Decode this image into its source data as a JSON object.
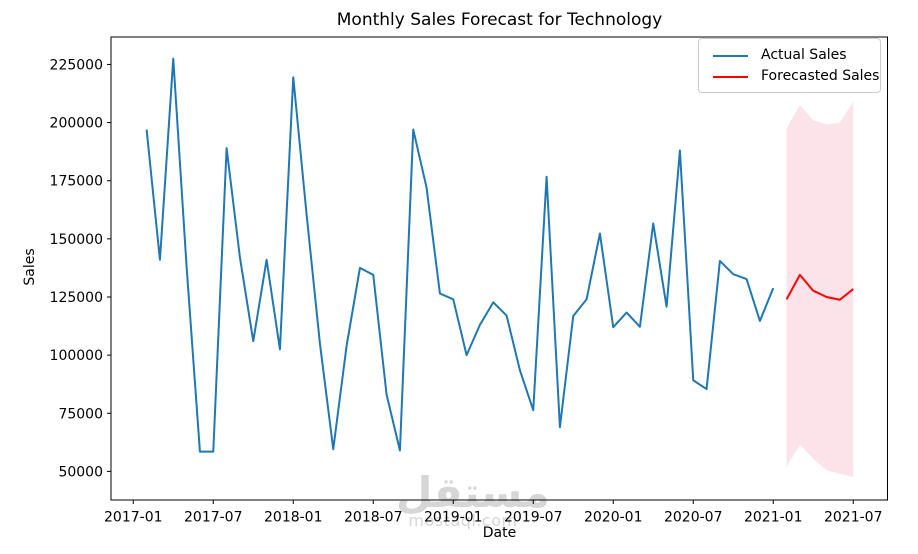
{
  "watermark": {
    "logo_text": "مستقل",
    "domain_text": "mostaql.com",
    "color": "#d6d6d6"
  },
  "chart_data": {
    "type": "line",
    "title": "Monthly Sales Forecast for Technology",
    "xlabel": "Date",
    "ylabel": "Sales",
    "axis_color": "#000000",
    "grid": false,
    "xlim_months": [
      -1.67,
      56.57
    ],
    "ylim": [
      37700,
      236800
    ],
    "x_ticks": [
      {
        "month": 0,
        "label": "2017-01"
      },
      {
        "month": 6,
        "label": "2017-07"
      },
      {
        "month": 12,
        "label": "2018-01"
      },
      {
        "month": 18,
        "label": "2018-07"
      },
      {
        "month": 24,
        "label": "2019-01"
      },
      {
        "month": 30,
        "label": "2019-07"
      },
      {
        "month": 36,
        "label": "2020-01"
      },
      {
        "month": 42,
        "label": "2020-07"
      },
      {
        "month": 48,
        "label": "2021-01"
      },
      {
        "month": 54,
        "label": "2021-07"
      }
    ],
    "y_ticks": [
      {
        "value": 50000,
        "label": "50000"
      },
      {
        "value": 75000,
        "label": "75000"
      },
      {
        "value": 100000,
        "label": "100000"
      },
      {
        "value": 125000,
        "label": "125000"
      },
      {
        "value": 150000,
        "label": "150000"
      },
      {
        "value": 175000,
        "label": "175000"
      },
      {
        "value": 200000,
        "label": "200000"
      },
      {
        "value": 225000,
        "label": "225000"
      }
    ],
    "legend": {
      "position": "top-right",
      "items": [
        {
          "label": "Actual Sales",
          "color": "#1f77b4"
        },
        {
          "label": "Forecasted Sales",
          "color": "#ff0000"
        }
      ]
    },
    "series": [
      {
        "name": "Actual Sales",
        "color": "#1f77b4",
        "dates": [
          "2017-02",
          "2017-03",
          "2017-04",
          "2017-05",
          "2017-06",
          "2017-07",
          "2017-08",
          "2017-09",
          "2017-10",
          "2017-11",
          "2017-12",
          "2018-01",
          "2018-02",
          "2018-03",
          "2018-04",
          "2018-05",
          "2018-06",
          "2018-07",
          "2018-08",
          "2018-09",
          "2018-10",
          "2018-11",
          "2018-12",
          "2019-01",
          "2019-02",
          "2019-03",
          "2019-04",
          "2019-05",
          "2019-06",
          "2019-07",
          "2019-08",
          "2019-09",
          "2019-10",
          "2019-11",
          "2019-12",
          "2020-01",
          "2020-02",
          "2020-03",
          "2020-04",
          "2020-05",
          "2020-06",
          "2020-07",
          "2020-08",
          "2020-09",
          "2020-10",
          "2020-11",
          "2020-12",
          "2021-01"
        ],
        "values": [
          197000,
          141000,
          227500,
          138000,
          58500,
          58500,
          189000,
          142000,
          106000,
          141000,
          102500,
          219500,
          160500,
          105000,
          59500,
          104000,
          137500,
          134500,
          83000,
          59000,
          197000,
          172000,
          126500,
          124000,
          100000,
          113000,
          122700,
          117000,
          93500,
          76300,
          176700,
          69000,
          116800,
          124000,
          152300,
          112000,
          118300,
          112200,
          156600,
          120800,
          188000,
          89200,
          85400,
          140500,
          134800,
          132700,
          114700,
          128800
        ]
      },
      {
        "name": "Forecasted Sales",
        "color": "#ff0000",
        "dates": [
          "2021-02",
          "2021-03",
          "2021-04",
          "2021-05",
          "2021-06",
          "2021-07"
        ],
        "values": [
          124000,
          134500,
          127700,
          125000,
          123800,
          128400
        ]
      }
    ],
    "confidence_band": {
      "series": "Forecasted Sales",
      "color": "#fce2e9",
      "dates": [
        "2021-02",
        "2021-03",
        "2021-04",
        "2021-05",
        "2021-06",
        "2021-07"
      ],
      "upper": [
        197500,
        207500,
        201000,
        199200,
        200000,
        209000
      ],
      "lower": [
        52000,
        61500,
        55500,
        50500,
        49000,
        47500
      ]
    }
  }
}
